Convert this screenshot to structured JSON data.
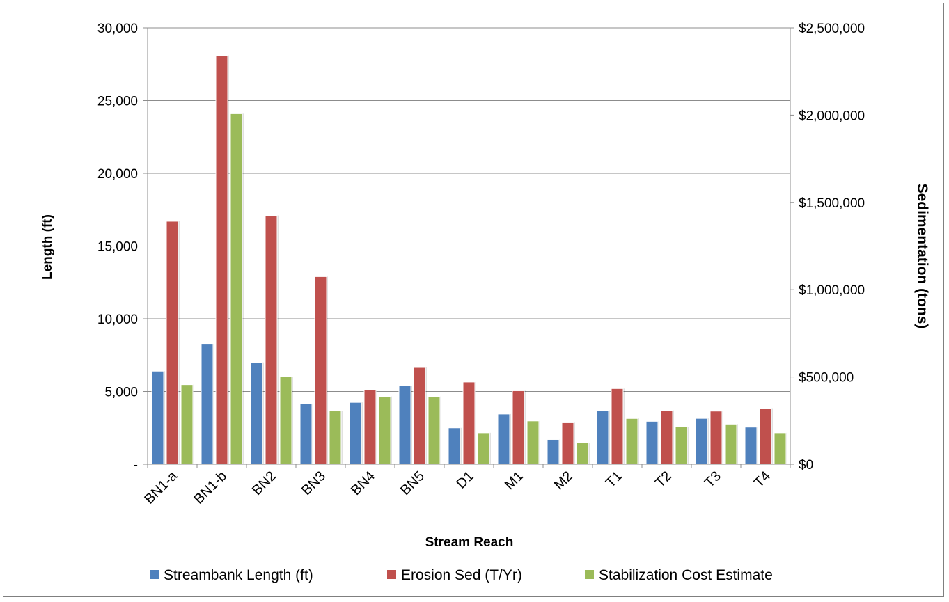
{
  "chart_data": {
    "type": "bar",
    "xlabel": "Stream Reach",
    "ylabel": "Length (ft)",
    "y2label": "Sedimentation (tons)",
    "categories": [
      "BN1-a",
      "BN1-b",
      "BN2",
      "BN3",
      "BN4",
      "BN5",
      "D1",
      "M1",
      "M2",
      "T1",
      "T2",
      "T3",
      "T4"
    ],
    "ylim": [
      0,
      30000
    ],
    "y2lim": [
      0,
      2500000
    ],
    "yticks": [
      0,
      5000,
      10000,
      15000,
      20000,
      25000,
      30000
    ],
    "ytick_labels": [
      "-",
      "5,000",
      "10,000",
      "15,000",
      "20,000",
      "25,000",
      "30,000"
    ],
    "y2ticks": [
      0,
      500000,
      1000000,
      1500000,
      2000000,
      2500000
    ],
    "y2tick_labels": [
      "$0",
      "$500,000",
      "$1,000,000",
      "$1,500,000",
      "$2,000,000",
      "$2,500,000"
    ],
    "grid": true,
    "legend_position": "bottom",
    "series": [
      {
        "name": "Streambank Length (ft)",
        "color": "#4f81bd",
        "axis": "left",
        "values": [
          6400,
          8250,
          7000,
          4150,
          4250,
          5400,
          2500,
          3450,
          1700,
          3700,
          2950,
          3150,
          2550
        ]
      },
      {
        "name": "Erosion Sed (T/Yr)",
        "color": "#c0504d",
        "axis": "left",
        "values": [
          16700,
          28100,
          17100,
          12900,
          5100,
          6650,
          5650,
          5050,
          2850,
          5200,
          3700,
          3650,
          3850
        ]
      },
      {
        "name": "Stabilization Cost Estimate",
        "color": "#9bbb59",
        "axis": "right",
        "values": [
          456000,
          2008000,
          502000,
          305000,
          388000,
          388000,
          180000,
          248000,
          122000,
          262000,
          215000,
          230000,
          180000
        ]
      }
    ]
  }
}
